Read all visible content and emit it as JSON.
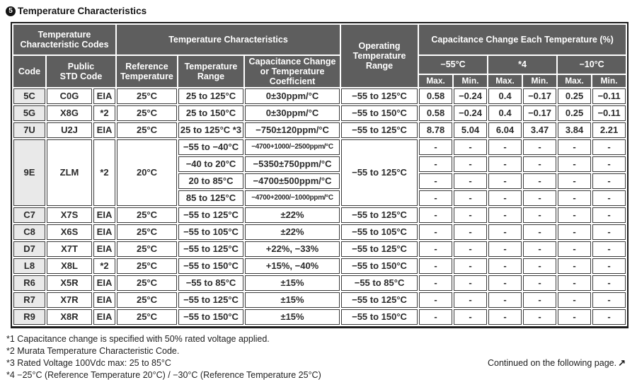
{
  "page": {
    "badge": "5",
    "title": "Temperature Characteristics"
  },
  "table": {
    "header": {
      "group_codes": "Temperature\nCharacteristic Codes",
      "group_characteristics": "Temperature Characteristics",
      "operating": "Operating\nTemperature\nRange",
      "group_capacitance": "Capacitance Change Each Temperature (%)",
      "col_code": "Code",
      "col_public_std": "Public\nSTD Code",
      "col_reference": "Reference\nTemperature",
      "col_temp_range": "Temperature\nRange",
      "col_cap_change": "Capacitance Change\nor Temperature\nCoefficient",
      "temp_groups": [
        "−55°C",
        "*4",
        "−10°C"
      ],
      "max_label": "Max.",
      "min_label": "Min."
    },
    "rows": [
      {
        "code": "5C",
        "std_code": "C0G",
        "std_org": "EIA",
        "ref_temp": "25°C",
        "op_range": "−55 to 125°C",
        "sub_rows": [
          {
            "temp_range": "25 to 125°C",
            "coeff": "0±30ppm/°C",
            "coeff_small": false,
            "values": [
              "0.58",
              "−0.24",
              "0.4",
              "−0.17",
              "0.25",
              "−0.11"
            ]
          }
        ]
      },
      {
        "code": "5G",
        "std_code": "X8G",
        "std_org": "*2",
        "ref_temp": "25°C",
        "op_range": "−55 to 150°C",
        "sub_rows": [
          {
            "temp_range": "25 to 150°C",
            "coeff": "0±30ppm/°C",
            "coeff_small": false,
            "values": [
              "0.58",
              "−0.24",
              "0.4",
              "−0.17",
              "0.25",
              "−0.11"
            ]
          }
        ]
      },
      {
        "code": "7U",
        "std_code": "U2J",
        "std_org": "EIA",
        "ref_temp": "25°C",
        "op_range": "−55 to 125°C",
        "sub_rows": [
          {
            "temp_range": "25 to 125°C *3",
            "coeff": "−750±120ppm/°C",
            "coeff_small": false,
            "values": [
              "8.78",
              "5.04",
              "6.04",
              "3.47",
              "3.84",
              "2.21"
            ]
          }
        ]
      },
      {
        "code": "9E",
        "std_code": "ZLM",
        "std_org": "*2",
        "ref_temp": "20°C",
        "op_range": "−55 to 125°C",
        "sub_rows": [
          {
            "temp_range": "−55 to −40°C",
            "coeff": "−4700+1000/−2500ppm/°C",
            "coeff_small": true,
            "values": [
              "-",
              "-",
              "-",
              "-",
              "-",
              "-"
            ]
          },
          {
            "temp_range": "−40 to 20°C",
            "coeff": "−5350±750ppm/°C",
            "coeff_small": false,
            "values": [
              "-",
              "-",
              "-",
              "-",
              "-",
              "-"
            ]
          },
          {
            "temp_range": "20 to 85°C",
            "coeff": "−4700±500ppm/°C",
            "coeff_small": false,
            "values": [
              "-",
              "-",
              "-",
              "-",
              "-",
              "-"
            ]
          },
          {
            "temp_range": "85 to 125°C",
            "coeff": "−4700+2000/−1000ppm/°C",
            "coeff_small": true,
            "values": [
              "-",
              "-",
              "-",
              "-",
              "-",
              "-"
            ]
          }
        ]
      },
      {
        "code": "C7",
        "std_code": "X7S",
        "std_org": "EIA",
        "ref_temp": "25°C",
        "op_range": "−55 to 125°C",
        "sub_rows": [
          {
            "temp_range": "−55 to 125°C",
            "coeff": "±22%",
            "coeff_small": false,
            "values": [
              "-",
              "-",
              "-",
              "-",
              "-",
              "-"
            ]
          }
        ]
      },
      {
        "code": "C8",
        "std_code": "X6S",
        "std_org": "EIA",
        "ref_temp": "25°C",
        "op_range": "−55 to 105°C",
        "sub_rows": [
          {
            "temp_range": "−55 to 105°C",
            "coeff": "±22%",
            "coeff_small": false,
            "values": [
              "-",
              "-",
              "-",
              "-",
              "-",
              "-"
            ]
          }
        ]
      },
      {
        "code": "D7",
        "std_code": "X7T",
        "std_org": "EIA",
        "ref_temp": "25°C",
        "op_range": "−55 to 125°C",
        "sub_rows": [
          {
            "temp_range": "−55 to 125°C",
            "coeff": "+22%, −33%",
            "coeff_small": false,
            "values": [
              "-",
              "-",
              "-",
              "-",
              "-",
              "-"
            ]
          }
        ]
      },
      {
        "code": "L8",
        "std_code": "X8L",
        "std_org": "*2",
        "ref_temp": "25°C",
        "op_range": "−55 to 150°C",
        "sub_rows": [
          {
            "temp_range": "−55 to 150°C",
            "coeff": "+15%, −40%",
            "coeff_small": false,
            "values": [
              "-",
              "-",
              "-",
              "-",
              "-",
              "-"
            ]
          }
        ]
      },
      {
        "code": "R6",
        "std_code": "X5R",
        "std_org": "EIA",
        "ref_temp": "25°C",
        "op_range": "−55 to 85°C",
        "sub_rows": [
          {
            "temp_range": "−55 to 85°C",
            "coeff": "±15%",
            "coeff_small": false,
            "values": [
              "-",
              "-",
              "-",
              "-",
              "-",
              "-"
            ]
          }
        ]
      },
      {
        "code": "R7",
        "std_code": "X7R",
        "std_org": "EIA",
        "ref_temp": "25°C",
        "op_range": "−55 to 125°C",
        "sub_rows": [
          {
            "temp_range": "−55 to 125°C",
            "coeff": "±15%",
            "coeff_small": false,
            "values": [
              "-",
              "-",
              "-",
              "-",
              "-",
              "-"
            ]
          }
        ]
      },
      {
        "code": "R9",
        "std_code": "X8R",
        "std_org": "EIA",
        "ref_temp": "25°C",
        "op_range": "−55 to 150°C",
        "sub_rows": [
          {
            "temp_range": "−55 to 150°C",
            "coeff": "±15%",
            "coeff_small": false,
            "values": [
              "-",
              "-",
              "-",
              "-",
              "-",
              "-"
            ]
          }
        ]
      }
    ]
  },
  "footnotes": [
    "*1 Capacitance change is specified with 50% rated voltage applied.",
    "*2 Murata Temperature Characteristic Code.",
    "*3 Rated Voltage 100Vdc max: 25 to 85°C",
    "*4 −25°C (Reference Temperature 20°C) / −30°C (Reference Temperature 25°C)"
  ],
  "continued": {
    "text": "Continued on the following page.",
    "icon": "↗"
  },
  "colors": {
    "header_bg": "#5e5e5e",
    "header_text": "#ffffff",
    "code_col_bg": "#e9e9e9",
    "border": "#3b3b3b",
    "text": "#2b2b2b"
  }
}
